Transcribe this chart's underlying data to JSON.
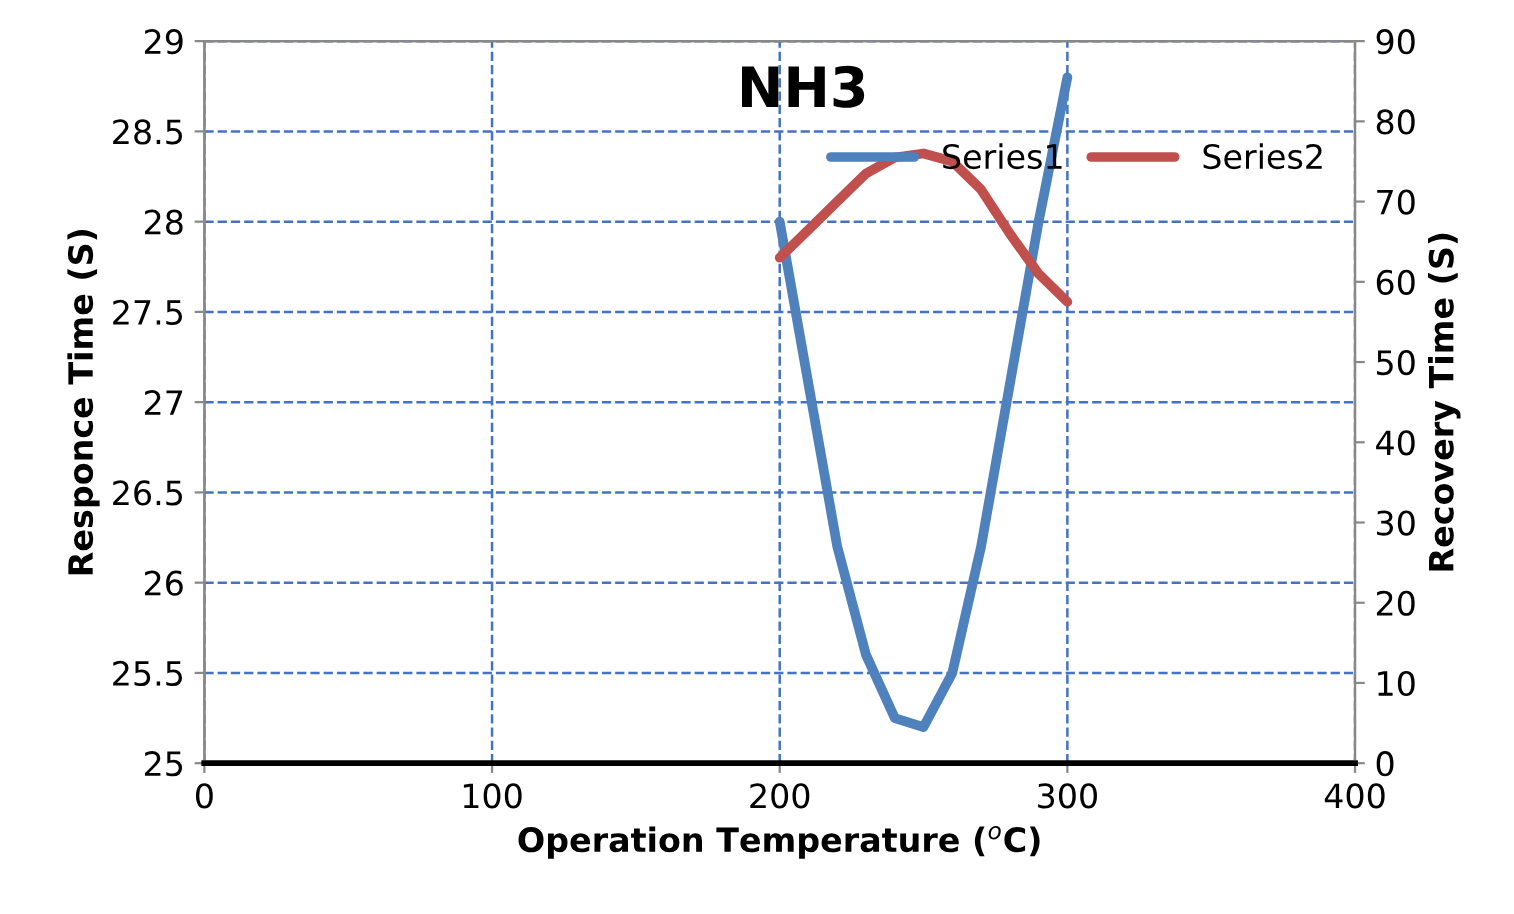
{
  "chart_data": {
    "type": "line",
    "title": "NH3",
    "xlabel": "Operation Temperature ($^{o}$C)",
    "ylabel": "Responce Time (S)",
    "y2label": "Recovery Time (S)",
    "xlim": [
      0,
      400
    ],
    "xticks": [
      0,
      100,
      200,
      300,
      400
    ],
    "ylim": [
      25,
      29
    ],
    "yticks": [
      25,
      25.5,
      26,
      26.5,
      27,
      27.5,
      28,
      28.5,
      29
    ],
    "y2lim": [
      0,
      90
    ],
    "y2ticks": [
      0,
      10,
      20,
      30,
      40,
      50,
      60,
      70,
      80,
      90
    ],
    "grid": true,
    "legend": "top right",
    "marker": "none",
    "line_style": "solid",
    "series": [
      {
        "name": "Series1",
        "color": "#4f81bd",
        "x": [
          200,
          210,
          220,
          230,
          240,
          250,
          260,
          270,
          280,
          290,
          300
        ],
        "values": [
          28,
          27.1,
          26.2,
          25.6,
          25.25,
          25.2,
          25.5,
          26.2,
          27.1,
          28,
          28.8
        ]
      },
      {
        "name": "Series2",
        "color": "#c0504d",
        "axis": "y2",
        "x": [
          200,
          210,
          220,
          230,
          240,
          250,
          260,
          270,
          280,
          290,
          300
        ],
        "values": [
          63,
          66.5,
          70,
          73.5,
          75.5,
          76,
          75,
          71.5,
          66,
          61,
          57.5
        ]
      }
    ]
  }
}
